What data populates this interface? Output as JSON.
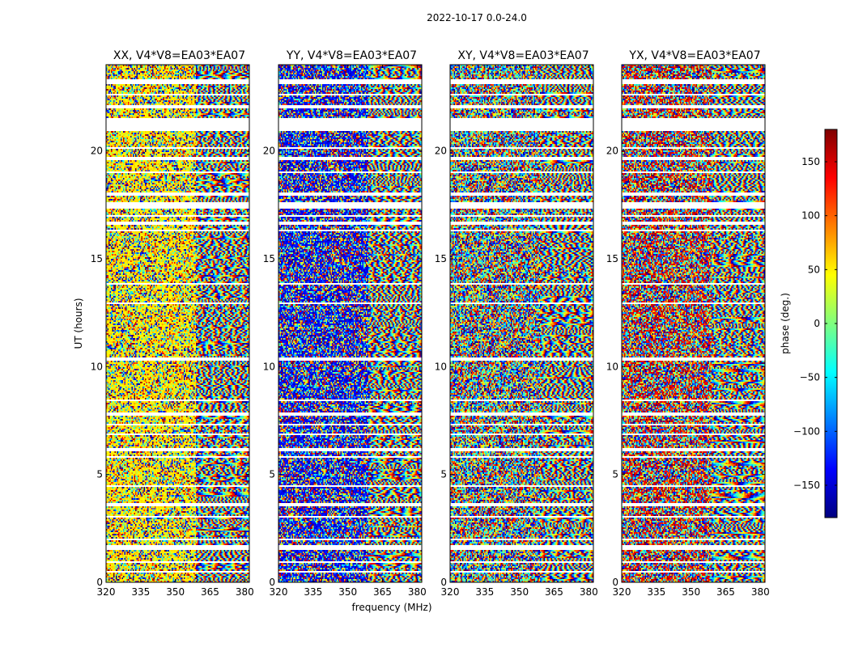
{
  "figure": {
    "suptitle": "2022-10-17 0.0-24.0"
  },
  "chart_data": {
    "type": "heatmap",
    "title": "2022-10-17 0.0-24.0",
    "xlabel": "frequency (MHz)",
    "ylabel": "UT (hours)",
    "xlim": [
      320,
      382
    ],
    "ylim": [
      0,
      24
    ],
    "x_ticks": [
      320,
      335,
      350,
      365,
      380
    ],
    "y_ticks": [
      0,
      5,
      10,
      15,
      20
    ],
    "colorbar": {
      "label": "phase (deg.)",
      "range": [
        -180,
        180
      ],
      "ticks": [
        -150,
        -100,
        -50,
        0,
        50,
        100,
        150
      ],
      "tick_labels": [
        "−150",
        "−100",
        "−50",
        "0",
        "50",
        "100",
        "150"
      ],
      "colormap": "jet",
      "colors": [
        "#00007f",
        "#0000ff",
        "#007fff",
        "#00ffff",
        "#7fff7f",
        "#ffff00",
        "#ff7f00",
        "#ff0000",
        "#7f0000"
      ]
    },
    "panels": [
      {
        "title": "XX, V4*V8=EA03*EA07",
        "pol": "XX",
        "bias_yellow": true
      },
      {
        "title": "YY, V4*V8=EA03*EA07",
        "pol": "YY",
        "bias_blue": true
      },
      {
        "title": "XY, V4*V8=EA03*EA07",
        "pol": "XY"
      },
      {
        "title": "YX, V4*V8=EA03*EA07",
        "pol": "YX",
        "bias_red": true
      }
    ],
    "flagged_intervals_ut": [
      [
        0.45,
        0.5
      ],
      [
        0.9,
        0.95
      ],
      [
        1.5,
        1.7
      ],
      [
        1.95,
        2.0
      ],
      [
        3.0,
        3.05
      ],
      [
        3.55,
        3.7
      ],
      [
        4.45,
        4.5
      ],
      [
        5.75,
        5.85
      ],
      [
        6.1,
        6.2
      ],
      [
        6.85,
        6.9
      ],
      [
        7.25,
        7.35
      ],
      [
        7.75,
        7.85
      ],
      [
        8.4,
        8.45
      ],
      [
        10.3,
        10.45
      ],
      [
        12.9,
        12.95
      ],
      [
        13.8,
        13.85
      ],
      [
        14.6,
        14.65
      ],
      [
        15.5,
        15.55
      ],
      [
        16.3,
        16.35
      ],
      [
        16.6,
        16.7
      ],
      [
        16.95,
        17.0
      ],
      [
        17.35,
        17.6
      ],
      [
        17.95,
        18.05
      ],
      [
        19.0,
        19.05
      ],
      [
        19.6,
        19.7
      ],
      [
        20.1,
        20.2
      ],
      [
        20.9,
        21.5
      ],
      [
        22.0,
        22.1
      ],
      [
        22.55,
        22.65
      ],
      [
        23.1,
        23.3
      ]
    ]
  }
}
